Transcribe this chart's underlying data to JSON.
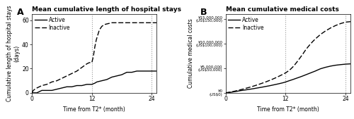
{
  "panel_A": {
    "title": "Mean cumulative length of hospital stays",
    "ylabel": "Cumulative length of hospital stays\n(days)",
    "xlabel": "Time from T2* (month)",
    "xlim": [
      0,
      25
    ],
    "ylim": [
      0,
      65
    ],
    "yticks": [
      0,
      20,
      40,
      60
    ],
    "xticks": [
      0,
      12,
      24
    ],
    "vlines": [
      12,
      24
    ],
    "active_x": [
      0,
      0.5,
      1,
      1.5,
      2,
      2.5,
      3,
      3.5,
      4,
      4.5,
      5,
      5.5,
      6,
      6.5,
      7,
      7.5,
      8,
      8.5,
      9,
      9.5,
      10,
      10.5,
      11,
      11.5,
      12,
      12.3,
      12.6,
      13,
      13.5,
      14,
      14.5,
      15,
      15.5,
      16,
      16.5,
      17,
      17.5,
      18,
      18.5,
      19,
      20,
      21,
      22,
      23,
      24,
      25
    ],
    "active_y": [
      0,
      0,
      0,
      1,
      2,
      2,
      2,
      2,
      2,
      2.5,
      3,
      3.5,
      4,
      4.5,
      5,
      5,
      5,
      5.5,
      6,
      6,
      6,
      6.5,
      7,
      7,
      7,
      7.5,
      8,
      9,
      9.5,
      10,
      10.5,
      11,
      12,
      13,
      13.5,
      14,
      14.5,
      15,
      16,
      17,
      17,
      18,
      18,
      18,
      18,
      18
    ],
    "inactive_x": [
      0,
      0.3,
      0.6,
      1,
      1.5,
      2,
      2.5,
      3,
      3.5,
      4,
      4.5,
      5,
      5.5,
      6,
      6.5,
      7,
      7.5,
      8,
      8.5,
      9,
      9.5,
      10,
      10.5,
      11,
      11.5,
      12,
      12.3,
      12.6,
      12.9,
      13.2,
      13.5,
      14,
      14.5,
      15,
      15.5,
      16,
      17,
      18,
      19,
      20,
      21,
      22,
      23,
      24,
      25
    ],
    "inactive_y": [
      0,
      2,
      3,
      4,
      5,
      6,
      6.5,
      7,
      8,
      9,
      9.5,
      10,
      11,
      12,
      13,
      14,
      15,
      16,
      17,
      18,
      19.5,
      21,
      22.5,
      24,
      25,
      25,
      30,
      38,
      44,
      48,
      52,
      55,
      56.5,
      57,
      57.5,
      58,
      58,
      58,
      58,
      58,
      58,
      58,
      58,
      58,
      58
    ],
    "legend_active": "Active",
    "legend_inactive": "Inactive"
  },
  "panel_B": {
    "title": "Mean cumulative medical costs",
    "ylabel": "Cumulative medical costs",
    "xlabel": "Time from T2* (month)",
    "xlim": [
      0,
      25
    ],
    "ylim": [
      0,
      16000000
    ],
    "yticks": [
      0,
      5000000,
      10000000,
      15000000
    ],
    "ytick_labels": [
      "¥0\n(US$0)",
      "¥5,000,000\n(US$50,000)",
      "¥10,000,000\n(US$100,000)",
      "¥15,000,000\n(US$150,000)"
    ],
    "xticks": [
      0,
      12,
      24
    ],
    "vlines": [
      12,
      24
    ],
    "active_x": [
      0,
      0.5,
      1,
      1.5,
      2,
      2.5,
      3,
      3.5,
      4,
      4.5,
      5,
      5.5,
      6,
      6.5,
      7,
      7.5,
      8,
      8.5,
      9,
      9.5,
      10,
      10.5,
      11,
      11.5,
      12,
      12.5,
      13,
      13.5,
      14,
      14.5,
      15,
      15.5,
      16,
      16.5,
      17,
      17.5,
      18,
      18.5,
      19,
      19.5,
      20,
      20.5,
      21,
      21.5,
      22,
      22.5,
      23,
      23.5,
      24,
      25
    ],
    "active_y": [
      0,
      50000,
      100000,
      180000,
      260000,
      350000,
      450000,
      520000,
      590000,
      670000,
      750000,
      830000,
      920000,
      1010000,
      1100000,
      1190000,
      1290000,
      1380000,
      1480000,
      1590000,
      1700000,
      1810000,
      1930000,
      2050000,
      2200000,
      2380000,
      2550000,
      2720000,
      2900000,
      3080000,
      3260000,
      3450000,
      3650000,
      3850000,
      4050000,
      4250000,
      4450000,
      4680000,
      4900000,
      5050000,
      5200000,
      5320000,
      5440000,
      5530000,
      5620000,
      5680000,
      5740000,
      5790000,
      5840000,
      5900000
    ],
    "inactive_x": [
      0,
      0.5,
      1,
      1.5,
      2,
      2.5,
      3,
      3.5,
      4,
      4.5,
      5,
      5.5,
      6,
      6.5,
      7,
      7.5,
      8,
      8.5,
      9,
      9.5,
      10,
      10.5,
      11,
      11.5,
      12,
      12.5,
      13,
      13.5,
      14,
      14.5,
      15,
      15.5,
      16,
      16.5,
      17,
      17.5,
      18,
      18.5,
      19,
      19.5,
      20,
      20.5,
      21,
      21.5,
      22,
      22.5,
      23,
      23.5,
      24,
      25
    ],
    "inactive_y": [
      0,
      70000,
      150000,
      260000,
      380000,
      500000,
      630000,
      760000,
      900000,
      1040000,
      1180000,
      1340000,
      1500000,
      1670000,
      1840000,
      2020000,
      2200000,
      2400000,
      2600000,
      2820000,
      3040000,
      3280000,
      3530000,
      3790000,
      4050000,
      4400000,
      4800000,
      5300000,
      5900000,
      6550000,
      7250000,
      7950000,
      8700000,
      9350000,
      9950000,
      10500000,
      11000000,
      11450000,
      11900000,
      12250000,
      12600000,
      12900000,
      13200000,
      13450000,
      13700000,
      13900000,
      14100000,
      14250000,
      14400000,
      14500000
    ],
    "legend_active": "Active",
    "legend_inactive": "Inactive"
  },
  "bg_color": "#ffffff",
  "line_color": "#000000",
  "vline_color": "#999999",
  "title_fontsize": 6.5,
  "label_fontsize": 5.5,
  "tick_fontsize": 5.5,
  "legend_fontsize": 5.5,
  "panel_label_fontsize": 9
}
